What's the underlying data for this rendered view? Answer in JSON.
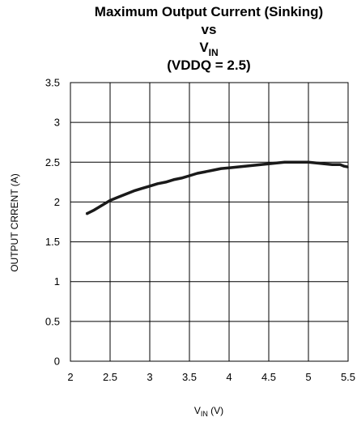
{
  "chart_data": {
    "type": "line",
    "title": {
      "line1": "Maximum Output Current (Sinking)",
      "line2": "vs",
      "line3_main": "V",
      "line3_sub": "IN",
      "line4": "(VDDQ = 2.5)"
    },
    "xlabel": {
      "main": "V",
      "sub": "IN",
      "suffix": " (V)"
    },
    "ylabel": "OUTPUT CRRENT (A)",
    "xlim": [
      2,
      5.5
    ],
    "ylim": [
      0,
      3.5
    ],
    "x_ticks": [
      "2",
      "2.5",
      "3",
      "3.5",
      "4",
      "4.5",
      "5",
      "5.5"
    ],
    "y_ticks": [
      "0",
      "0.5",
      "1",
      "1.5",
      "2",
      "2.5",
      "3",
      "3.5"
    ],
    "grid": true,
    "series": [
      {
        "color": "#1a1a1a",
        "x": [
          2.2,
          2.3,
          2.4,
          2.5,
          2.6,
          2.7,
          2.8,
          2.9,
          3.0,
          3.1,
          3.2,
          3.3,
          3.4,
          3.5,
          3.6,
          3.7,
          3.8,
          3.9,
          4.0,
          4.1,
          4.2,
          4.3,
          4.4,
          4.5,
          4.6,
          4.7,
          4.8,
          4.9,
          5.0,
          5.1,
          5.2,
          5.3,
          5.4,
          5.45,
          5.5
        ],
        "y": [
          1.85,
          1.9,
          1.96,
          2.02,
          2.06,
          2.1,
          2.14,
          2.17,
          2.2,
          2.23,
          2.25,
          2.28,
          2.3,
          2.33,
          2.36,
          2.38,
          2.4,
          2.42,
          2.43,
          2.44,
          2.45,
          2.46,
          2.47,
          2.48,
          2.49,
          2.5,
          2.5,
          2.5,
          2.5,
          2.49,
          2.48,
          2.47,
          2.47,
          2.45,
          2.44
        ]
      }
    ]
  }
}
